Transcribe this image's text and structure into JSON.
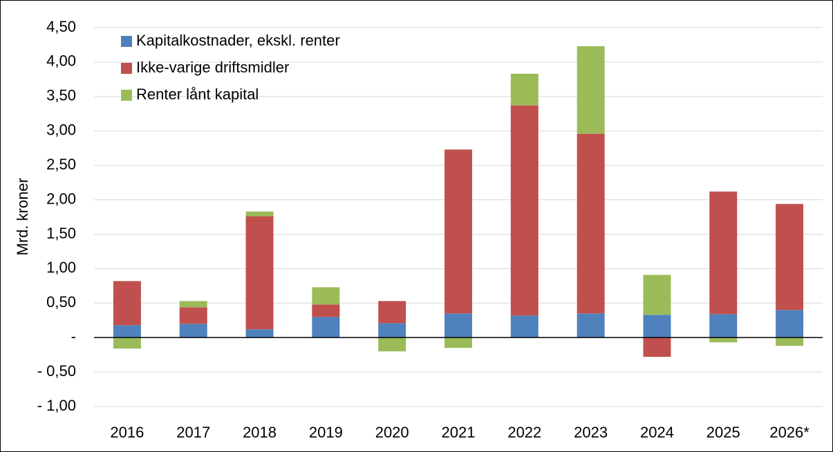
{
  "chart_data": {
    "type": "stacked_bar",
    "y_label": "Mrd. kroner",
    "categories": [
      "2016",
      "2017",
      "2018",
      "2019",
      "2020",
      "2021",
      "2022",
      "2023",
      "2024",
      "2025",
      "2026*"
    ],
    "series": [
      {
        "name": "Kapitalkostnader, ekskl. renter",
        "color": "#4f81bd",
        "values": [
          0.18,
          0.2,
          0.12,
          0.3,
          0.21,
          0.35,
          0.32,
          0.35,
          0.33,
          0.34,
          0.4
        ]
      },
      {
        "name": "Ikke-varige driftsmidler",
        "color": "#c0504d",
        "values": [
          0.64,
          0.24,
          1.64,
          0.18,
          0.32,
          2.38,
          3.05,
          2.61,
          -0.28,
          1.78,
          1.54
        ]
      },
      {
        "name": "Renter lånt kapital",
        "color": "#9bbb59",
        "values": [
          -0.16,
          0.09,
          0.07,
          0.25,
          -0.2,
          -0.15,
          0.46,
          1.27,
          0.58,
          -0.07,
          -0.12
        ]
      }
    ],
    "ylim": [
      -1,
      4.5
    ],
    "yticks": [
      {
        "value": -1,
        "label": "- 1,00"
      },
      {
        "value": -0.5,
        "label": "- 0,50"
      },
      {
        "value": 0,
        "label": "-"
      },
      {
        "value": 0.5,
        "label": "0,50"
      },
      {
        "value": 1,
        "label": "1,00"
      },
      {
        "value": 1.5,
        "label": "1,50"
      },
      {
        "value": 2,
        "label": "2,00"
      },
      {
        "value": 2.5,
        "label": "2,50"
      },
      {
        "value": 3,
        "label": "3,00"
      },
      {
        "value": 3.5,
        "label": "3,50"
      },
      {
        "value": 4,
        "label": "4,00"
      },
      {
        "value": 4.5,
        "label": "4,50"
      }
    ],
    "grid": true,
    "legend": "top-left"
  }
}
